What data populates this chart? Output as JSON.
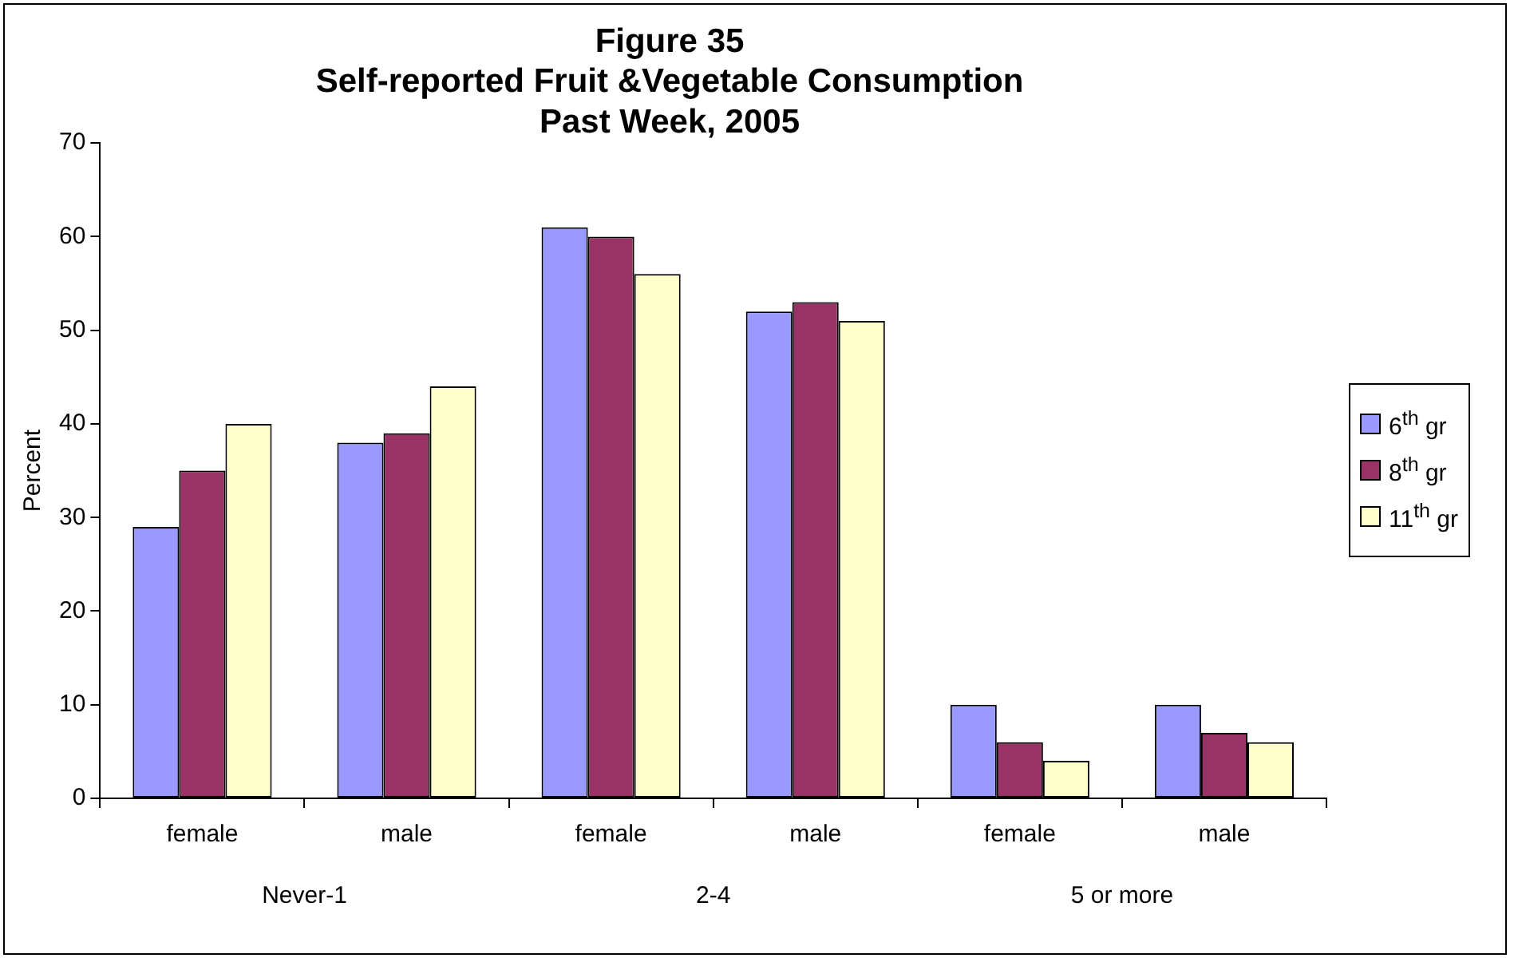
{
  "chart_data": {
    "type": "bar",
    "title": "Figure 35\nSelf-reported Fruit &Vegetable Consumption\nPast Week, 2005",
    "ylabel": "Percent",
    "categories": [
      "female",
      "male",
      "female",
      "male",
      "female",
      "male"
    ],
    "series": [
      {
        "name": "6$^{th}$ gr",
        "color": "#9999ff",
        "values": [
          29,
          38,
          61,
          52,
          10,
          10
        ]
      },
      {
        "name": "8$^{th}$ gr",
        "color": "#993366",
        "values": [
          35,
          39,
          60,
          53,
          6,
          7
        ]
      },
      {
        "name": "11$^{th}$ gr",
        "color": "#ffffcc",
        "values": [
          40,
          44,
          56,
          51,
          4,
          6
        ]
      }
    ],
    "annotations": [
      "Never-1",
      "2-4",
      "5 or more"
    ],
    "ylim": [
      0,
      70
    ],
    "yticks": [
      0,
      10,
      20,
      30,
      40,
      50,
      60,
      70
    ],
    "grid": false,
    "legend": "right"
  }
}
